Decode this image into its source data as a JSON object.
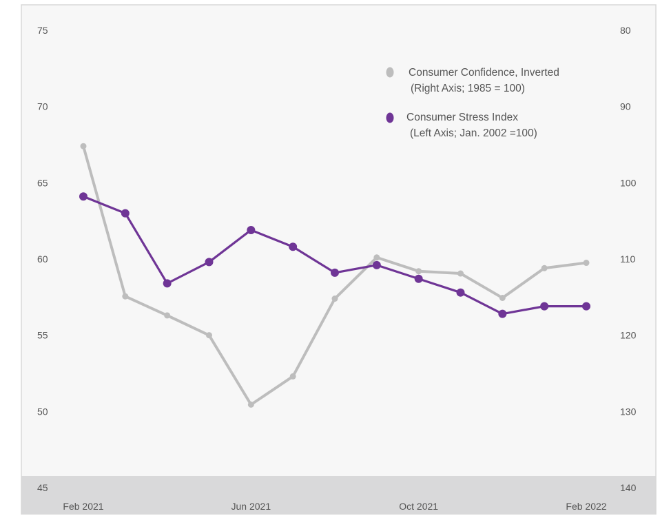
{
  "chart_data": {
    "type": "line",
    "title": "",
    "x": [
      "Feb 2021",
      "Mar 2021",
      "Apr 2021",
      "May 2021",
      "Jun 2021",
      "Jul 2021",
      "Aug 2021",
      "Sep 2021",
      "Oct 2021",
      "Nov 2021",
      "Dec 2021",
      "Jan 2022",
      "Feb 2022"
    ],
    "x_tick_labels": [
      "Feb 2021",
      "Jun 2021",
      "Oct 2021",
      "Feb 2022"
    ],
    "left_axis": {
      "ylim": [
        45,
        75
      ],
      "ticks": [
        75,
        70,
        65,
        60,
        55,
        50,
        45
      ]
    },
    "right_axis": {
      "ylim": [
        80,
        140
      ],
      "inverted": true,
      "ticks": [
        80,
        90,
        100,
        110,
        120,
        130,
        140
      ]
    },
    "series": [
      {
        "name": "Consumer Confidence, Inverted",
        "legend_subtitle": "(Right Axis; 1985 = 100)",
        "axis": "right",
        "color": "#bdbdbd",
        "values": [
          95.2,
          114.9,
          117.4,
          120.0,
          129.1,
          125.4,
          115.2,
          109.8,
          111.6,
          111.9,
          115.1,
          111.2,
          110.5
        ]
      },
      {
        "name": "Consumer Stress Index",
        "legend_subtitle": "(Left Axis; Jan. 2002 =100)",
        "axis": "left",
        "color": "#6f3596",
        "values": [
          64.1,
          63.0,
          58.4,
          59.8,
          61.9,
          60.8,
          59.1,
          59.6,
          58.7,
          57.8,
          56.4,
          56.9,
          56.9
        ]
      }
    ],
    "grid": false,
    "legend_position": "top-right"
  },
  "colors": {
    "plot_background": "#f7f7f7",
    "band_background": "#d9d9da",
    "frame": "#d8d8d8"
  }
}
